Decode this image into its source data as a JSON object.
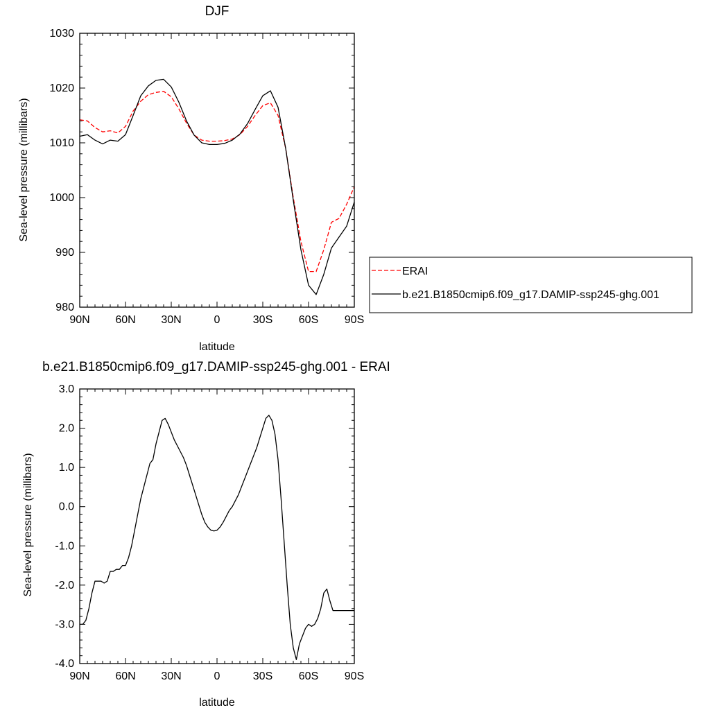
{
  "chart_data": [
    {
      "type": "line",
      "title": "DJF",
      "xlabel": "latitude",
      "ylabel": "Sea-level pressure (millibars)",
      "xlim": [
        90,
        -90
      ],
      "ylim": [
        980,
        1030
      ],
      "x_ticks": [
        90,
        60,
        30,
        0,
        -30,
        -60,
        -90
      ],
      "x_tick_labels": [
        "90N",
        "60N",
        "30N",
        "0",
        "30S",
        "60S",
        "90S"
      ],
      "y_ticks": [
        980,
        990,
        1000,
        1010,
        1020,
        1030
      ],
      "y_tick_labels": [
        "980",
        "990",
        "1000",
        "1010",
        "1020",
        "1030"
      ],
      "legend_position": "right",
      "series": [
        {
          "name": "ERAI",
          "color": "#ff0000",
          "dash": "dashed",
          "x": [
            90,
            85,
            80,
            75,
            70,
            65,
            60,
            55,
            50,
            45,
            40,
            35,
            30,
            25,
            20,
            15,
            10,
            5,
            0,
            -5,
            -10,
            -15,
            -20,
            -25,
            -30,
            -35,
            -40,
            -45,
            -50,
            -55,
            -60,
            -65,
            -70,
            -75,
            -80,
            -85,
            -90
          ],
          "values": [
            1014.2,
            1014.0,
            1012.8,
            1012.0,
            1012.2,
            1011.8,
            1013.0,
            1015.8,
            1017.6,
            1018.8,
            1019.2,
            1019.4,
            1018.4,
            1016.2,
            1013.6,
            1011.4,
            1010.5,
            1010.3,
            1010.3,
            1010.4,
            1010.7,
            1011.5,
            1013.0,
            1015.0,
            1016.8,
            1017.3,
            1015.0,
            1009.0,
            1000.0,
            992.0,
            986.5,
            986.5,
            990.5,
            995.5,
            996.2,
            998.8,
            1002.0
          ]
        },
        {
          "name": "b.e21.B1850cmip6.f09_g17.DAMIP-ssp245-ghg.001",
          "color": "#000000",
          "dash": "solid",
          "x": [
            90,
            85,
            80,
            75,
            70,
            65,
            60,
            55,
            50,
            45,
            40,
            35,
            30,
            25,
            20,
            15,
            10,
            5,
            0,
            -5,
            -10,
            -15,
            -20,
            -25,
            -30,
            -35,
            -40,
            -45,
            -50,
            -55,
            -60,
            -65,
            -70,
            -75,
            -80,
            -85,
            -90
          ],
          "values": [
            1011.2,
            1011.5,
            1010.5,
            1009.8,
            1010.5,
            1010.3,
            1011.5,
            1015.0,
            1018.6,
            1020.4,
            1021.4,
            1021.6,
            1020.2,
            1017.4,
            1014.0,
            1011.4,
            1010.0,
            1009.7,
            1009.7,
            1009.9,
            1010.5,
            1011.6,
            1013.5,
            1016.1,
            1018.6,
            1019.5,
            1016.5,
            1009.0,
            999.5,
            990.5,
            984.0,
            982.3,
            986.0,
            990.8,
            992.8,
            994.8,
            999.2
          ]
        }
      ]
    },
    {
      "type": "line",
      "title": "b.e21.B1850cmip6.f09_g17.DAMIP-ssp245-ghg.001 - ERAI",
      "xlabel": "latitude",
      "ylabel": "Sea-level pressure (millibars)",
      "xlim": [
        90,
        -90
      ],
      "ylim": [
        -4.0,
        3.0
      ],
      "x_ticks": [
        90,
        60,
        30,
        0,
        -30,
        -60,
        -90
      ],
      "x_tick_labels": [
        "90N",
        "60N",
        "30N",
        "0",
        "30S",
        "60S",
        "90S"
      ],
      "y_ticks": [
        -4,
        -3,
        -2,
        -1,
        0,
        1,
        2,
        3
      ],
      "y_tick_labels": [
        "-4.0",
        "-3.0",
        "-2.0",
        "-1.0",
        "0.0",
        "1.0",
        "2.0",
        "3.0"
      ],
      "series": [
        {
          "color": "#000000",
          "dash": "solid",
          "x": [
            90,
            88,
            86,
            84,
            82,
            80,
            78,
            76,
            74,
            72,
            70,
            68,
            66,
            64,
            62,
            60,
            58,
            56,
            54,
            52,
            50,
            48,
            46,
            44,
            42,
            40,
            38,
            36,
            34,
            32,
            30,
            28,
            26,
            24,
            22,
            20,
            18,
            16,
            14,
            12,
            10,
            8,
            6,
            4,
            2,
            0,
            -2,
            -4,
            -6,
            -8,
            -10,
            -12,
            -14,
            -16,
            -18,
            -20,
            -22,
            -24,
            -26,
            -28,
            -30,
            -32,
            -34,
            -36,
            -38,
            -40,
            -42,
            -44,
            -46,
            -48,
            -50,
            -52,
            -54,
            -56,
            -58,
            -60,
            -62,
            -64,
            -66,
            -68,
            -70,
            -72,
            -74,
            -76,
            -78,
            -80,
            -82,
            -84,
            -86,
            -88,
            -90
          ],
          "values": [
            -3.0,
            -3.0,
            -2.9,
            -2.6,
            -2.2,
            -1.9,
            -1.9,
            -1.9,
            -1.95,
            -1.9,
            -1.65,
            -1.65,
            -1.6,
            -1.6,
            -1.5,
            -1.5,
            -1.3,
            -1.0,
            -0.6,
            -0.2,
            0.2,
            0.5,
            0.8,
            1.1,
            1.2,
            1.6,
            1.9,
            2.2,
            2.25,
            2.1,
            1.9,
            1.7,
            1.55,
            1.4,
            1.25,
            1.05,
            0.8,
            0.55,
            0.3,
            0.05,
            -0.2,
            -0.4,
            -0.52,
            -0.6,
            -0.62,
            -0.6,
            -0.52,
            -0.4,
            -0.25,
            -0.1,
            0.0,
            0.15,
            0.3,
            0.5,
            0.7,
            0.9,
            1.1,
            1.3,
            1.5,
            1.75,
            2.0,
            2.25,
            2.33,
            2.2,
            1.85,
            1.2,
            0.2,
            -0.9,
            -2.0,
            -3.0,
            -3.6,
            -3.9,
            -3.5,
            -3.3,
            -3.1,
            -3.0,
            -3.05,
            -3.0,
            -2.85,
            -2.6,
            -2.2,
            -2.1,
            -2.4,
            -2.65,
            -2.65,
            -2.65,
            -2.65,
            -2.65,
            -2.65,
            -2.65,
            -2.65
          ]
        }
      ]
    }
  ]
}
